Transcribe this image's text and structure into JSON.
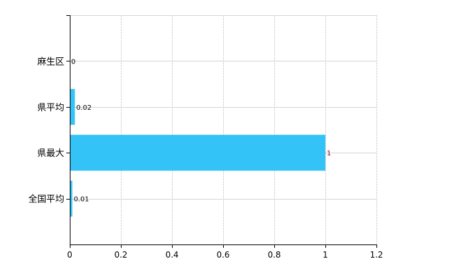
{
  "chart_data": {
    "type": "bar",
    "orientation": "horizontal",
    "categories": [
      "麻生区",
      "県平均",
      "県最大",
      "全国平均"
    ],
    "values": [
      0,
      0.02,
      1,
      0.01
    ],
    "data_labels": [
      "0",
      "0.02",
      "1",
      "0.01"
    ],
    "data_label_colors": [
      "#000000",
      "#000000",
      "#8b0000",
      "#000000"
    ],
    "title": "",
    "xlabel": "",
    "ylabel": "",
    "xlim": [
      0,
      1.2
    ],
    "xticks": [
      "0",
      "0.2",
      "0.4",
      "0.6",
      "0.8",
      "1",
      "1.2"
    ],
    "grid": true,
    "bar_color": "#33c3f7"
  }
}
